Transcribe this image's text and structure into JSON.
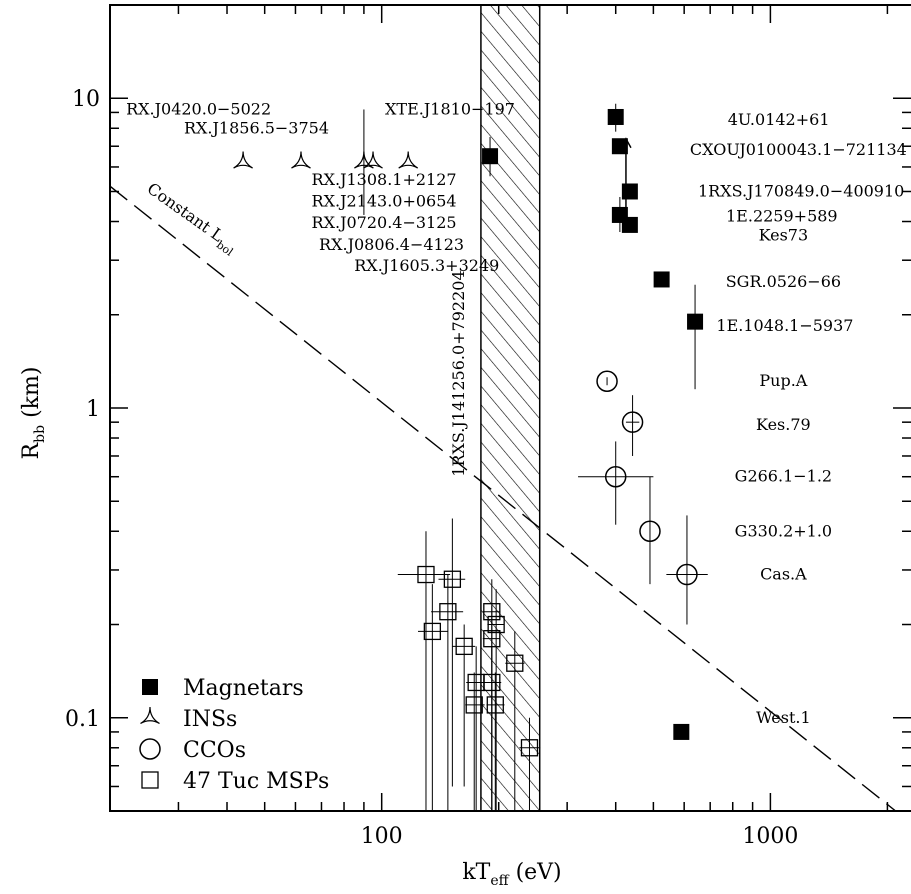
{
  "chart_data": {
    "type": "scatter",
    "xscale": "log",
    "yscale": "log",
    "xlim": [
      20,
      2300
    ],
    "ylim": [
      0.05,
      20
    ],
    "xlabel": "kT",
    "xlabel_sub": "eff",
    "xlabel_unit": " (eV)",
    "ylabel": "R",
    "ylabel_sub": "bb",
    "ylabel_unit": " (km)",
    "x_ticks": [
      {
        "v": 100,
        "label": "100"
      },
      {
        "v": 1000,
        "label": "1000"
      }
    ],
    "y_ticks": [
      {
        "v": 0.1,
        "label": "0.1"
      },
      {
        "v": 1,
        "label": "1"
      },
      {
        "v": 10,
        "label": "10"
      }
    ],
    "hatched_band": {
      "x": [
        180,
        255
      ]
    },
    "constant_lbol_line": {
      "points": [
        [
          20,
          5.2
        ],
        [
          2100,
          0.05
        ]
      ],
      "label": "Constant L",
      "label_sub": "bol"
    },
    "legend": [
      {
        "marker": "square-filled",
        "label": "Magnetars"
      },
      {
        "marker": "tri",
        "label": "INSs"
      },
      {
        "marker": "circle",
        "label": "CCOs"
      },
      {
        "marker": "square-open",
        "label": "47 Tuc MSPs"
      }
    ],
    "series": [
      {
        "name": "Magnetars",
        "marker": "square-filled",
        "points": [
          {
            "x": 400,
            "y": 8.7,
            "ylo": 7.8,
            "yhi": 9.6
          },
          {
            "x": 410,
            "y": 7.0
          },
          {
            "x": 190,
            "y": 6.5,
            "ylo": 5.6,
            "yhi": 7.5
          },
          {
            "x": 435,
            "y": 5.0
          },
          {
            "x": 410,
            "y": 4.2,
            "ylo": 3.7,
            "yhi": 4.8
          },
          {
            "x": 435,
            "y": 3.9
          },
          {
            "x": 525,
            "y": 2.6
          },
          {
            "x": 640,
            "y": 1.9,
            "ylo": 1.15,
            "yhi": 2.5
          },
          {
            "x": 590,
            "y": 0.09
          }
        ]
      },
      {
        "name": "INSs",
        "marker": "tri",
        "points": [
          {
            "x": 44,
            "y": 6.2
          },
          {
            "x": 62,
            "y": 6.2
          },
          {
            "x": 90,
            "y": 6.2,
            "ylo": 4.2,
            "yhi": 9.2
          },
          {
            "x": 95,
            "y": 6.2
          },
          {
            "x": 117,
            "y": 6.2
          }
        ]
      },
      {
        "name": "CCOs",
        "marker": "circle",
        "points": [
          {
            "x": 380,
            "y": 1.22
          },
          {
            "x": 442,
            "y": 0.9,
            "ylo": 0.7,
            "yhi": 1.1,
            "xlo": 425,
            "xhi": 460
          },
          {
            "x": 400,
            "y": 0.6,
            "ylo": 0.42,
            "yhi": 0.78,
            "xlo": 320,
            "xhi": 500
          },
          {
            "x": 490,
            "y": 0.4,
            "ylo": 0.27,
            "yhi": 0.6
          },
          {
            "x": 610,
            "y": 0.29,
            "ylo": 0.2,
            "yhi": 0.45,
            "xlo": 540,
            "xhi": 690
          }
        ]
      },
      {
        "name": "47 Tuc MSPs",
        "marker": "square-open",
        "points": [
          {
            "x": 130,
            "y": 0.29,
            "xlo": 110,
            "xhi": 150,
            "ylo": 0.05,
            "yhi": 0.4
          },
          {
            "x": 152,
            "y": 0.28,
            "xlo": 140,
            "xhi": 164,
            "ylo": 0.06,
            "yhi": 0.44
          },
          {
            "x": 148,
            "y": 0.22,
            "xlo": 134,
            "xhi": 162,
            "ylo": 0.05,
            "yhi": 0.29
          },
          {
            "x": 135,
            "y": 0.19,
            "xlo": 124,
            "xhi": 148,
            "ylo": 0.05,
            "yhi": 0.27
          },
          {
            "x": 163,
            "y": 0.17,
            "xlo": 152,
            "xhi": 174,
            "ylo": 0.06,
            "yhi": 0.2
          },
          {
            "x": 192,
            "y": 0.22,
            "xlo": 182,
            "xhi": 202,
            "ylo": 0.05,
            "yhi": 0.28
          },
          {
            "x": 197,
            "y": 0.2,
            "xlo": 187,
            "xhi": 207,
            "ylo": 0.05,
            "yhi": 0.26
          },
          {
            "x": 192,
            "y": 0.18,
            "xlo": 182,
            "xhi": 202,
            "ylo": 0.05,
            "yhi": 0.23
          },
          {
            "x": 175,
            "y": 0.13,
            "xlo": 165,
            "xhi": 186,
            "ylo": 0.05,
            "yhi": 0.17
          },
          {
            "x": 192,
            "y": 0.13,
            "xlo": 181,
            "xhi": 203,
            "ylo": 0.05,
            "yhi": 0.17
          },
          {
            "x": 173,
            "y": 0.11,
            "xlo": 164,
            "xhi": 184,
            "ylo": 0.05,
            "yhi": 0.14
          },
          {
            "x": 196,
            "y": 0.11,
            "xlo": 186,
            "xhi": 207,
            "ylo": 0.05,
            "yhi": 0.14
          },
          {
            "x": 220,
            "y": 0.15,
            "xlo": 208,
            "xhi": 233,
            "ylo": 0.05,
            "yhi": 0.19
          },
          {
            "x": 240,
            "y": 0.08,
            "xlo": 226,
            "xhi": 256,
            "ylo": 0.05,
            "yhi": 0.1
          }
        ]
      }
    ],
    "annotations": [
      {
        "text": "RX.J0420.0−5022",
        "x": 22,
        "y": 9.2,
        "anchor": "start"
      },
      {
        "text": "RX.J1856.5−3754",
        "x": 31,
        "y": 8.0,
        "anchor": "start"
      },
      {
        "text": "XTE.J1810−197",
        "x": 102,
        "y": 9.2,
        "anchor": "start"
      },
      {
        "text": "RX.J1308.1+2127",
        "x": 66,
        "y": 5.45,
        "anchor": "start"
      },
      {
        "text": "RX.J2143.0+0654",
        "x": 66,
        "y": 4.65,
        "anchor": "start"
      },
      {
        "text": "RX.J0720.4−3125",
        "x": 66,
        "y": 3.95,
        "anchor": "start"
      },
      {
        "text": "RX.J0806.4−4123",
        "x": 69,
        "y": 3.36,
        "anchor": "start"
      },
      {
        "text": "RX.J1605.3+3249",
        "x": 85,
        "y": 2.87,
        "anchor": "start"
      },
      {
        "text": "4U.0142+61",
        "x": 1050,
        "y": 8.5,
        "anchor": "middle"
      },
      {
        "text": "CXOUJ0100043.1−721134",
        "x": 1180,
        "y": 6.8,
        "anchor": "middle"
      },
      {
        "text": "1RXS.J170849.0−400910",
        "x": 1200,
        "y": 5.0,
        "anchor": "middle"
      },
      {
        "text": "1E.2259+589",
        "x": 1070,
        "y": 4.15,
        "anchor": "middle"
      },
      {
        "text": "Kes73",
        "x": 1080,
        "y": 3.6,
        "anchor": "middle"
      },
      {
        "text": "SGR.0526−66",
        "x": 1080,
        "y": 2.55,
        "anchor": "middle"
      },
      {
        "text": "1E.1048.1−5937",
        "x": 1090,
        "y": 1.84,
        "anchor": "middle"
      },
      {
        "text": "Pup.A",
        "x": 1080,
        "y": 1.22,
        "anchor": "middle"
      },
      {
        "text": "Kes.79",
        "x": 1080,
        "y": 0.88,
        "anchor": "middle"
      },
      {
        "text": "G266.1−1.2",
        "x": 1080,
        "y": 0.6,
        "anchor": "middle"
      },
      {
        "text": "G330.2+1.0",
        "x": 1080,
        "y": 0.4,
        "anchor": "middle"
      },
      {
        "text": "Cas.A",
        "x": 1080,
        "y": 0.29,
        "anchor": "middle"
      },
      {
        "text": "West.1",
        "x": 1080,
        "y": 0.1,
        "anchor": "middle"
      }
    ],
    "vertical_annotation": {
      "text": "1RXS.J141256.0+792204",
      "x": 157,
      "y": 0.6
    }
  }
}
